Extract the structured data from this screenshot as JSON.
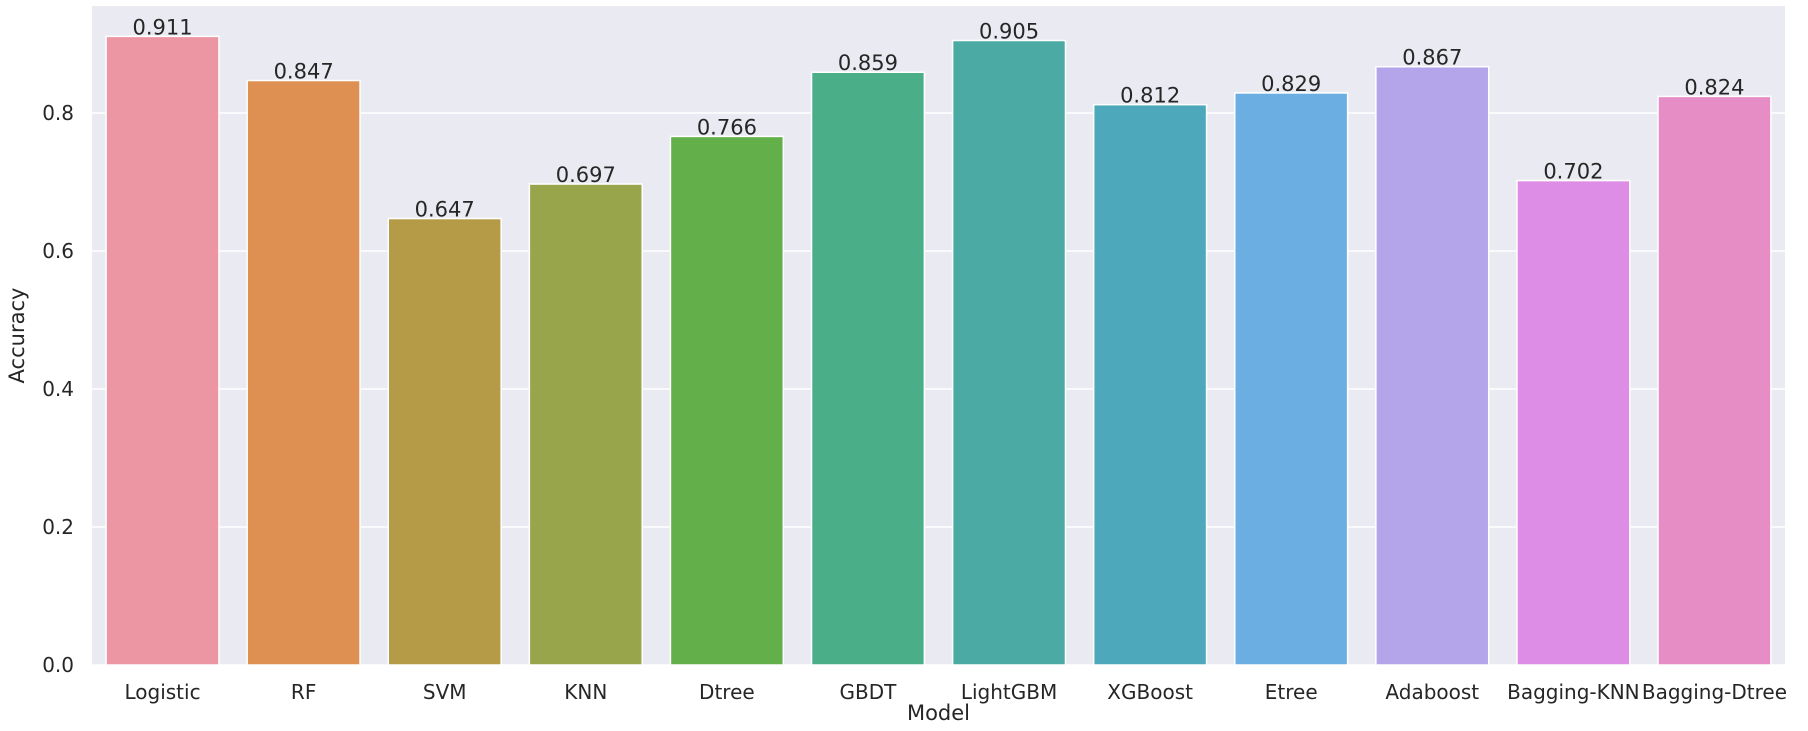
{
  "chart_data": {
    "type": "bar",
    "title": "",
    "xlabel": "Model",
    "ylabel": "Accuracy",
    "categories": [
      "Logistic",
      "RF",
      "SVM",
      "KNN",
      "Dtree",
      "GBDT",
      "LightGBM",
      "XGBoost",
      "Etree",
      "Adaboost",
      "Bagging-KNN",
      "Bagging-Dtree"
    ],
    "values": [
      0.911,
      0.847,
      0.647,
      0.697,
      0.766,
      0.859,
      0.905,
      0.812,
      0.829,
      0.867,
      0.702,
      0.824
    ],
    "value_labels": [
      "0.911",
      "0.847",
      "0.647",
      "0.697",
      "0.766",
      "0.859",
      "0.905",
      "0.812",
      "0.829",
      "0.867",
      "0.702",
      "0.824"
    ],
    "ylim": [
      0,
      0.955
    ],
    "yticks": [
      0.0,
      0.2,
      0.4,
      0.6,
      0.8
    ],
    "ytick_labels": [
      "0.0",
      "0.2",
      "0.4",
      "0.6",
      "0.8"
    ],
    "grid": true,
    "legend": "none",
    "colors": {
      "background": "#EAEAF2",
      "grid": "#FFFFFF",
      "bars": [
        "#EB96A2",
        "#DE8F52",
        "#B59B48",
        "#98A54A",
        "#63AF4A",
        "#4AAF88",
        "#4CAAA4",
        "#4EA8BC",
        "#6BAEE2",
        "#B4A5EA",
        "#DE8DE6",
        "#E78DC5"
      ]
    }
  }
}
